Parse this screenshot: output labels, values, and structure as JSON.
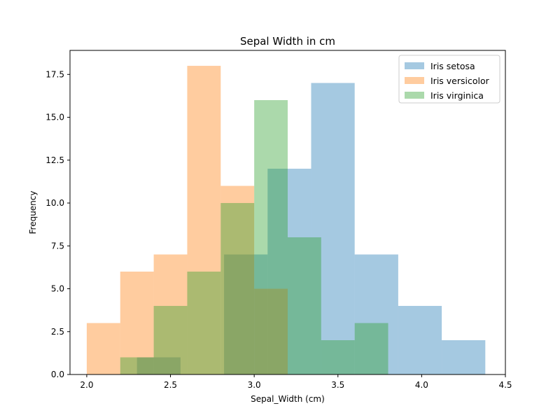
{
  "chart_data": {
    "type": "bar",
    "histogram": true,
    "title": "Sepal Width in cm",
    "xlabel": "Sepal_Width (cm)",
    "ylabel": "Frequency",
    "xlim": [
      1.9,
      4.5
    ],
    "ylim": [
      0,
      18.9
    ],
    "xticks": [
      2.0,
      2.5,
      3.0,
      3.5,
      4.0,
      4.5
    ],
    "xtick_labels": [
      "2.0",
      "2.5",
      "3.0",
      "3.5",
      "4.0",
      "4.5"
    ],
    "yticks": [
      0,
      2.5,
      5,
      7.5,
      10,
      12.5,
      15,
      17.5
    ],
    "ytick_labels": [
      "0.0",
      "2.5",
      "5.0",
      "7.5",
      "10.0",
      "12.5",
      "15.0",
      "17.5"
    ],
    "grid": false,
    "legend_position": "top-right",
    "series": [
      {
        "name": "Iris setosa",
        "color": "#1f77b4",
        "bin_edges": [
          2.3,
          2.56,
          2.82,
          3.08,
          3.34,
          3.6,
          3.86,
          4.12,
          4.38
        ],
        "counts": [
          1,
          0,
          7,
          12,
          17,
          7,
          4,
          2
        ]
      },
      {
        "name": "Iris versicolor",
        "color": "#ff7f0e",
        "bin_edges": [
          2.0,
          2.2,
          2.4,
          2.6,
          2.8,
          3.0,
          3.2,
          3.4
        ],
        "counts": [
          3,
          6,
          7,
          18,
          11,
          5,
          0
        ]
      },
      {
        "name": "Iris virginica",
        "color": "#2ca02c",
        "bin_edges": [
          2.2,
          2.4,
          2.6,
          2.8,
          3.0,
          3.2,
          3.4,
          3.6,
          3.8
        ],
        "counts": [
          1,
          4,
          6,
          10,
          16,
          8,
          2,
          3
        ]
      }
    ],
    "alpha": 0.4
  }
}
